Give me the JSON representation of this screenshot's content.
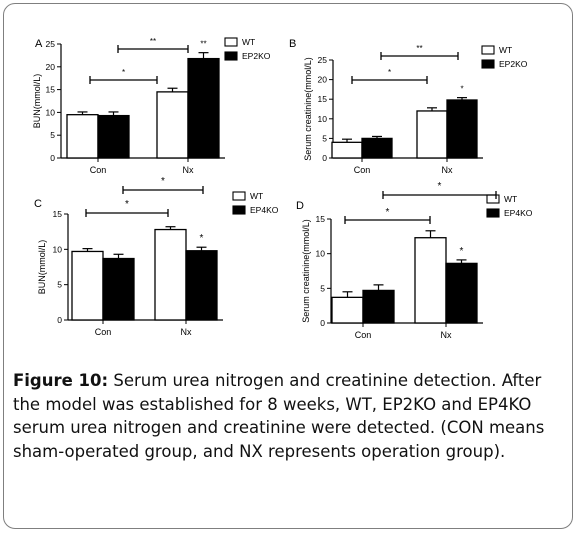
{
  "chart_data": [
    {
      "panel": "A",
      "type": "bar",
      "categories": [
        "Con",
        "Nx"
      ],
      "ylabel": "BUN(mmol/L)",
      "ylim": [
        0,
        25
      ],
      "yticks": [
        0,
        5,
        10,
        15,
        20,
        25
      ],
      "series": [
        {
          "name": "WT",
          "values": [
            9.5,
            14.5
          ],
          "errors": [
            0.6,
            0.8
          ],
          "fill": "#ffffff"
        },
        {
          "name": "EP2KO",
          "values": [
            9.3,
            21.8
          ],
          "errors": [
            0.8,
            1.3
          ],
          "fill": "#000000"
        }
      ],
      "annotations": [
        "*",
        "**",
        "**"
      ],
      "legend_position": "top-right"
    },
    {
      "panel": "B",
      "type": "bar",
      "categories": [
        "Con",
        "Nx"
      ],
      "ylabel": "Serum creatinine(mmol/L)",
      "ylim": [
        0,
        25
      ],
      "yticks": [
        0,
        5,
        10,
        15,
        20,
        25
      ],
      "series": [
        {
          "name": "WT",
          "values": [
            4.0,
            12.0
          ],
          "errors": [
            0.8,
            0.8
          ],
          "fill": "#ffffff"
        },
        {
          "name": "EP2KO",
          "values": [
            5.0,
            14.8
          ],
          "errors": [
            0.5,
            0.6
          ],
          "fill": "#000000"
        }
      ],
      "annotations": [
        "*",
        "**",
        "*"
      ],
      "legend_position": "top-right"
    },
    {
      "panel": "C",
      "type": "bar",
      "categories": [
        "Con",
        "Nx"
      ],
      "ylabel": "BUN(mmol/L)",
      "ylim": [
        0,
        15
      ],
      "yticks": [
        0,
        5,
        10,
        15
      ],
      "series": [
        {
          "name": "WT",
          "values": [
            9.7,
            12.8
          ],
          "errors": [
            0.4,
            0.4
          ],
          "fill": "#ffffff"
        },
        {
          "name": "EP4KO",
          "values": [
            8.7,
            9.8
          ],
          "errors": [
            0.6,
            0.5
          ],
          "fill": "#000000"
        }
      ],
      "annotations": [
        "*",
        "*",
        "*"
      ],
      "legend_position": "top-right"
    },
    {
      "panel": "D",
      "type": "bar",
      "categories": [
        "Con",
        "Nx"
      ],
      "ylabel": "Serum creatinine(mmol/L)",
      "ylim": [
        0,
        15
      ],
      "yticks": [
        0,
        5,
        10,
        15
      ],
      "series": [
        {
          "name": "WT",
          "values": [
            3.7,
            12.3
          ],
          "errors": [
            0.8,
            1.0
          ],
          "fill": "#ffffff"
        },
        {
          "name": "EP4KO",
          "values": [
            4.7,
            8.6
          ],
          "errors": [
            0.8,
            0.5
          ],
          "fill": "#000000"
        }
      ],
      "annotations": [
        "*",
        "*",
        "*"
      ],
      "legend_position": "top-right"
    }
  ],
  "caption": {
    "label": "Figure 10:",
    "text": " Serum urea nitrogen and creatinine detection. After the model was established for 8 weeks, WT, EP2KO and EP4KO serum urea nitrogen and creatinine were detected. (CON means sham-operated group, and NX represents operation group)."
  }
}
